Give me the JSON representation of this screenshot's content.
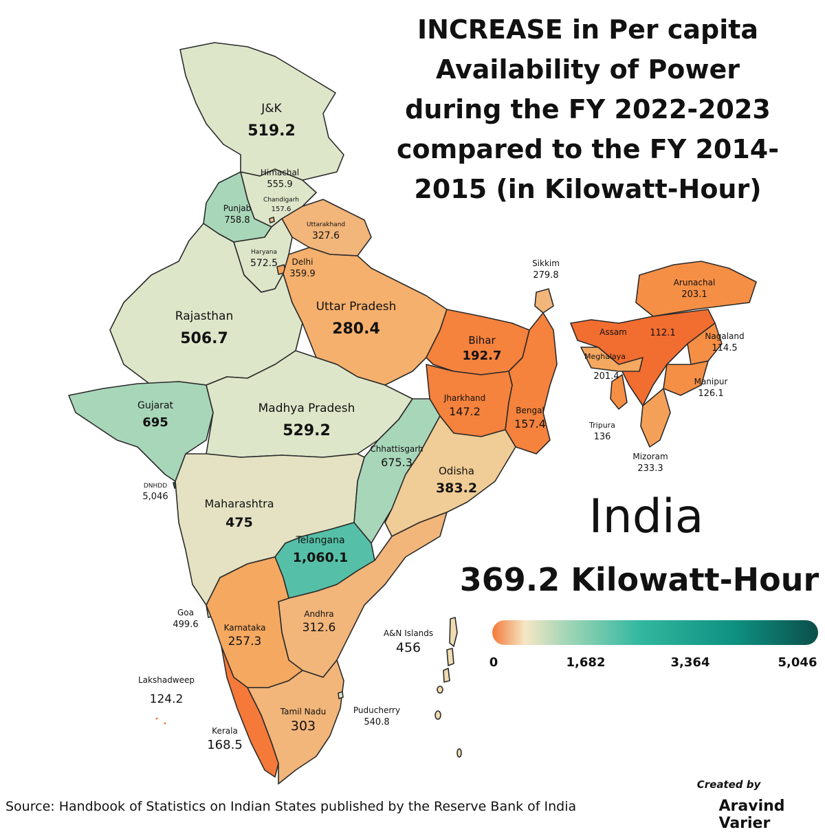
{
  "title": "INCREASE in Per capita Availability of Power during the FY 2022-2023 compared to the FY 2014-2015 (in Kilowatt-Hour)",
  "country": {
    "name": "India",
    "total": "369.2 Kilowatt-Hour"
  },
  "legend": {
    "ticks": [
      "0",
      "1,682",
      "3,364",
      "5,046"
    ]
  },
  "source": "Source: Handbook of Statistics on Indian States published by the Reserve Bank of India",
  "credit": {
    "line1": "Created by",
    "line2": "Aravind Varier"
  },
  "colors": {
    "low": "#f47a3a",
    "mid_low": "#f5e6c4",
    "mid": "#a7d7b8",
    "high": "#33b8a0",
    "max": "#0b4f4a"
  },
  "regions": {
    "jk": {
      "name": "J&K",
      "value": "519.2"
    },
    "himachal": {
      "name": "Himachal",
      "value": "555.9"
    },
    "chandigarh": {
      "name": "Chandigarh",
      "value": "157.6"
    },
    "punjab": {
      "name": "Punjab",
      "value": "758.8"
    },
    "uttarakhand": {
      "name": "Uttarakhand",
      "value": "327.6"
    },
    "haryana": {
      "name": "Haryana",
      "value": "572.5"
    },
    "delhi": {
      "name": "Delhi",
      "value": "359.9"
    },
    "rajasthan": {
      "name": "Rajasthan",
      "value": "506.7"
    },
    "uttar_pradesh": {
      "name": "Uttar Pradesh",
      "value": "280.4"
    },
    "bihar": {
      "name": "Bihar",
      "value": "192.7"
    },
    "sikkim": {
      "name": "Sikkim",
      "value": "279.8"
    },
    "arunachal": {
      "name": "Arunachal",
      "value": "203.1"
    },
    "assam": {
      "name": "Assam",
      "value": "112.1"
    },
    "nagaland": {
      "name": "Nagaland",
      "value": "114.5"
    },
    "meghalaya": {
      "name": "Meghalaya",
      "value": "201.4"
    },
    "manipur": {
      "name": "Manipur",
      "value": "126.1"
    },
    "tripura": {
      "name": "Tripura",
      "value": "136"
    },
    "mizoram": {
      "name": "Mizoram",
      "value": "233.3"
    },
    "gujarat": {
      "name": "Gujarat",
      "value": "695"
    },
    "madhya_pradesh": {
      "name": "Madhya Pradesh",
      "value": "529.2"
    },
    "jharkhand": {
      "name": "Jharkhand",
      "value": "147.2"
    },
    "bengal": {
      "name": "Bengal",
      "value": "157.4"
    },
    "chhattisgarh": {
      "name": "Chhattisgarh",
      "value": "675.3"
    },
    "odisha": {
      "name": "Odisha",
      "value": "383.2"
    },
    "dnhdd": {
      "name": "DNHDD",
      "value": "5,046"
    },
    "maharashtra": {
      "name": "Maharashtra",
      "value": "475"
    },
    "telangana": {
      "name": "Telangana",
      "value": "1,060.1"
    },
    "goa": {
      "name": "Goa",
      "value": "499.6"
    },
    "karnataka": {
      "name": "Karnataka",
      "value": "257.3"
    },
    "andhra": {
      "name": "Andhra",
      "value": "312.6"
    },
    "an_islands": {
      "name": "A&N Islands",
      "value": "456"
    },
    "lakshadweep": {
      "name": "Lakshadweep",
      "value": "124.2"
    },
    "tamil_nadu": {
      "name": "Tamil Nadu",
      "value": "303"
    },
    "puducherry": {
      "name": "Puducherry",
      "value": "540.8"
    },
    "kerala": {
      "name": "Kerala",
      "value": "168.5"
    }
  }
}
